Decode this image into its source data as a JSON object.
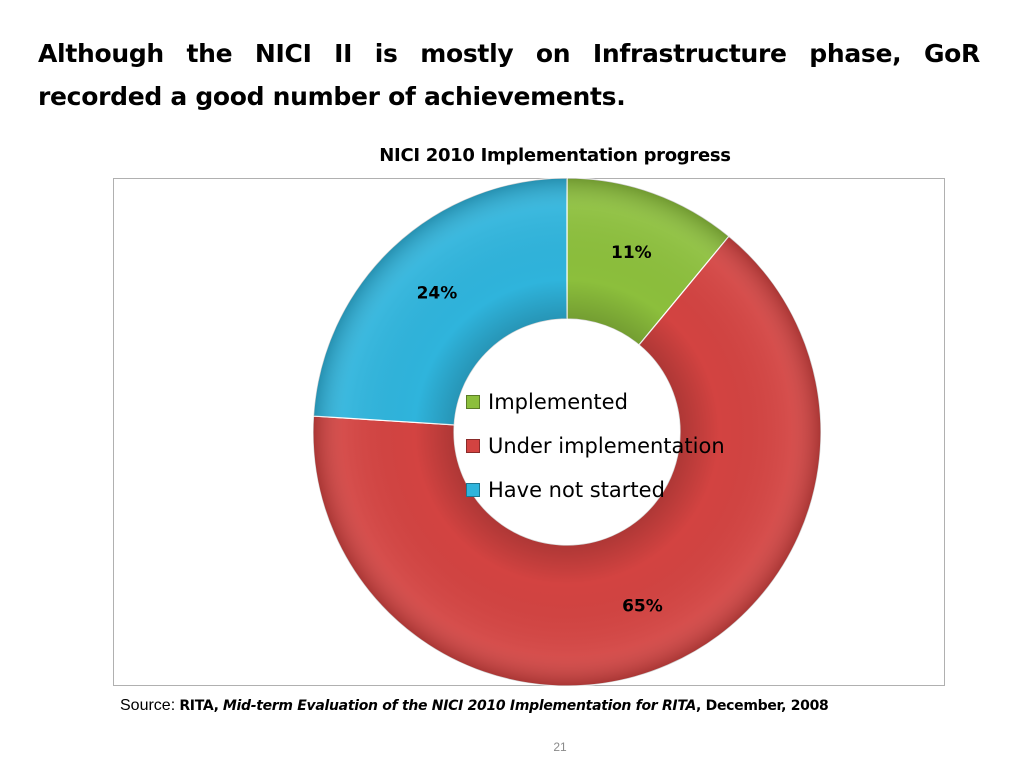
{
  "slide": {
    "headline": "Although the NICI II is mostly on Infrastructure phase, GoR recorded a good number of achievements.",
    "page_number": "21"
  },
  "source": {
    "label": "Source:",
    "author": "RITA,",
    "title": "Mid-term Evaluation of the NICI 2010 Implementation for RITA",
    "date": ", December, 2008"
  },
  "chart_data": {
    "type": "pie",
    "style": "donut",
    "title": "NICI 2010 Implementation progress",
    "legend_placement": "center",
    "slices": [
      {
        "name": "Implemented",
        "value": 11,
        "label": "11%",
        "color": "#8cbf3c"
      },
      {
        "name": "Under implementation",
        "value": 65,
        "label": "65%",
        "color": "#d34341"
      },
      {
        "name": "Have not started",
        "value": 24,
        "label": "24%",
        "color": "#2fb4dc"
      }
    ]
  }
}
